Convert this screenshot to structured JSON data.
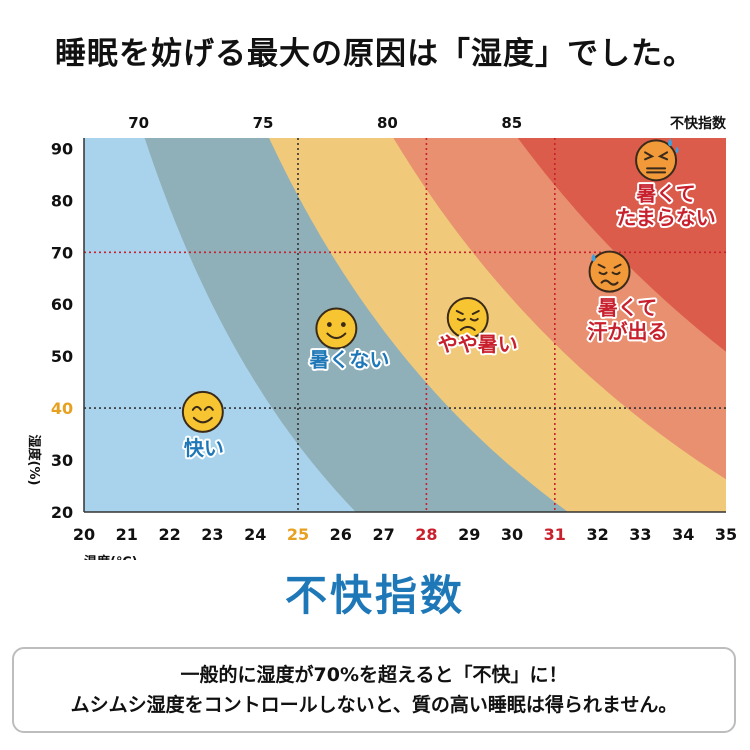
{
  "headline": "睡眠を妨げる最大の原因は「湿度」でした。",
  "big_title": "不快指数",
  "note": {
    "line1": "一般的に湿度が70%を超えると「不快」に！",
    "line2": "ムシムシ湿度をコントロールしないと、質の高い睡眠は得られません。"
  },
  "colors": {
    "zone_comfortable": "#a9d3ec",
    "zone_not_hot": "#8fb0b8",
    "zone_slightly_hot": "#f0c97a",
    "zone_sweat": "#e89070",
    "zone_unbearable": "#dc5c4c",
    "label_blue": "#1e78b8",
    "label_red": "#c8202c",
    "highlight_orange": "#e8a020",
    "highlight_red": "#c8202c",
    "face_yellow": "#f7c531",
    "face_orange": "#f29a3a"
  },
  "chart_data": {
    "type": "area",
    "xlabel": "温度(℃)",
    "ylabel": "湿度(%)",
    "top_axis_label": "不快指数",
    "xlim": [
      20,
      35
    ],
    "ylim": [
      20,
      92
    ],
    "x_ticks": [
      20,
      21,
      22,
      23,
      24,
      25,
      26,
      27,
      28,
      29,
      30,
      31,
      32,
      33,
      34,
      35
    ],
    "y_ticks": [
      20,
      30,
      40,
      50,
      60,
      70,
      80,
      90
    ],
    "highlight_x": [
      25,
      28,
      31
    ],
    "highlight_y": [
      40
    ],
    "reference_lines": {
      "temperature": [
        25,
        28,
        31
      ],
      "humidity": [
        40,
        70
      ]
    },
    "discomfort_index_ticks": [
      70,
      75,
      80,
      85
    ],
    "zone_boundaries_di": [
      70,
      75,
      80,
      85
    ],
    "zones": [
      {
        "label": "快い",
        "di_range": [
          null,
          70
        ],
        "face": "happy",
        "label_color": "blue",
        "at": {
          "temp": 22.8,
          "hum": 31
        }
      },
      {
        "label": "暑くない",
        "di_range": [
          70,
          75
        ],
        "face": "smile",
        "label_color": "blue",
        "at": {
          "temp": 26.2,
          "hum": 48
        }
      },
      {
        "label": "やや暑い",
        "di_range": [
          75,
          80
        ],
        "face": "uneasy",
        "label_color": "red",
        "at": {
          "temp": 29.2,
          "hum": 51
        }
      },
      {
        "label": "暑くて\n汗が出る",
        "di_range": [
          80,
          85
        ],
        "face": "sweat",
        "label_color": "red",
        "at": {
          "temp": 32.7,
          "hum": 58
        }
      },
      {
        "label": "暑くて\nたまらない",
        "di_range": [
          85,
          null
        ],
        "face": "unbearable",
        "label_color": "red",
        "at": {
          "temp": 33.6,
          "hum": 80
        }
      }
    ]
  }
}
